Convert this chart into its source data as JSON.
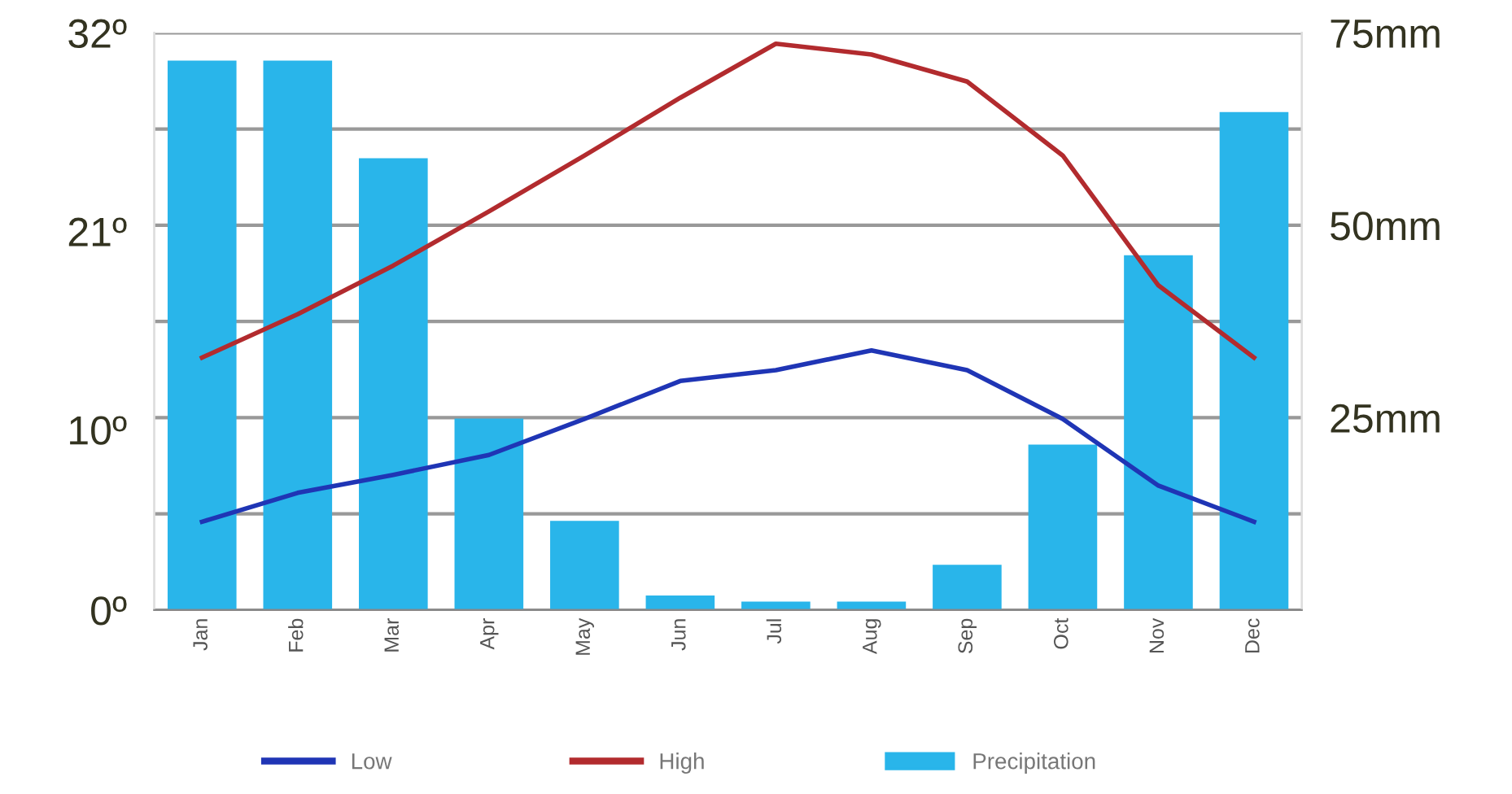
{
  "chart_data": {
    "type": "line",
    "categories": [
      "Jan",
      "Feb",
      "Mar",
      "Apr",
      "May",
      "Jun",
      "Jul",
      "Aug",
      "Sep",
      "Oct",
      "Nov",
      "Dec"
    ],
    "series": [
      {
        "name": "Low",
        "color": "#1f35b5",
        "values": [
          4.9,
          6.5,
          7.5,
          8.6,
          10.6,
          12.7,
          13.3,
          14.4,
          13.3,
          10.6,
          6.9,
          4.9
        ]
      },
      {
        "name": "High",
        "color": "#b22b2e",
        "values": [
          14.0,
          16.4,
          19.1,
          22.1,
          25.2,
          28.4,
          31.4,
          30.8,
          29.3,
          25.2,
          18.0,
          14.0
        ]
      },
      {
        "name": "Precipitation",
        "type": "bar",
        "axis": "y2",
        "color": "#29b5ea",
        "values": [
          71.4,
          71.4,
          58.7,
          24.9,
          11.6,
          1.9,
          1.1,
          1.1,
          5.9,
          21.5,
          46.1,
          64.7
        ]
      }
    ],
    "ylim": [
      0,
      32
    ],
    "yticks": [
      {
        "value": 0,
        "label": "0º"
      },
      {
        "value": 10,
        "label": "10º"
      },
      {
        "value": 21,
        "label": "21º"
      },
      {
        "value": 32,
        "label": "32º"
      }
    ],
    "y2lim": [
      0,
      75
    ],
    "y2ticks": [
      {
        "value": 0,
        "label": null
      },
      {
        "value": 12.5,
        "label": null
      },
      {
        "value": 25,
        "label": "25mm"
      },
      {
        "value": 37.5,
        "label": null
      },
      {
        "value": 50,
        "label": "50mm"
      },
      {
        "value": 62.5,
        "label": null
      },
      {
        "value": 75,
        "label": "75mm"
      }
    ],
    "grid": "y2",
    "legend": "bottom",
    "marker": "none",
    "line_style": "solid"
  }
}
